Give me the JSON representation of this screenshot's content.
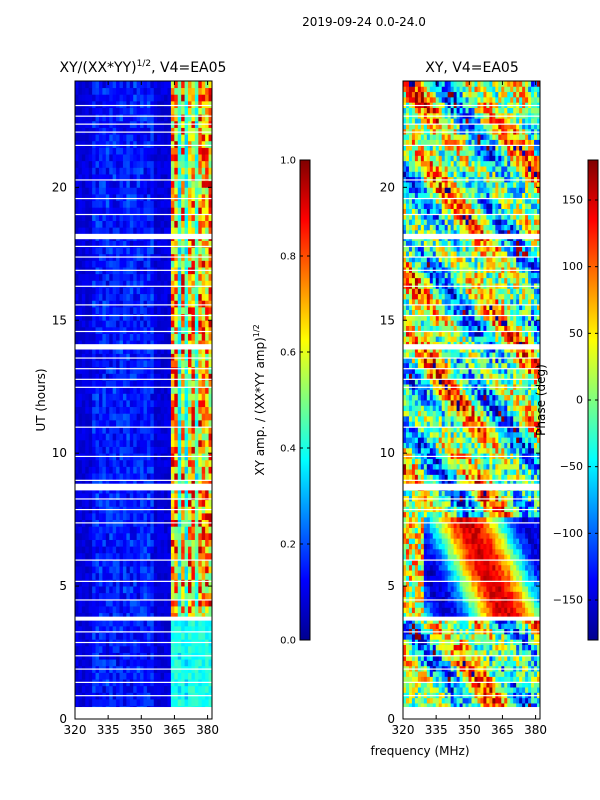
{
  "figure": {
    "suptitle": "2019-09-24 0.0-24.0",
    "xlabel": "frequency (MHz)"
  },
  "chart_data": [
    {
      "type": "heatmap",
      "title": "XY/(XX*YY)^{1/2}, V4=EA05",
      "title_parts": {
        "main": "XY/(XX*YY)",
        "sup": "1/2",
        "tail": ", V4=EA05"
      },
      "xlabel": "frequency (MHz)",
      "ylabel": "UT (hours)",
      "xlim": [
        320,
        382
      ],
      "ylim": [
        0,
        24
      ],
      "xticks": [
        320,
        335,
        350,
        365,
        380
      ],
      "yticks": [
        0,
        5,
        10,
        15,
        20
      ],
      "colormap": "jet",
      "colorbar": {
        "label": "XY amp. / (XX*YY amp)^{1/2}",
        "label_parts": {
          "main": "XY amp. / (XX*YY amp)",
          "sup": "1/2"
        },
        "range": [
          0.0,
          1.0
        ],
        "ticks": [
          "0.0",
          "0.2",
          "0.4",
          "0.6",
          "0.8",
          "1.0"
        ]
      },
      "bright_channels_MHz": [
        365,
        369,
        373,
        377,
        380
      ],
      "missing_time_ranges_hours": [
        [
          0.0,
          0.45
        ],
        [
          3.7,
          3.85
        ],
        [
          8.6,
          8.85
        ],
        [
          13.9,
          14.1
        ],
        [
          18.05,
          18.25
        ]
      ]
    },
    {
      "type": "heatmap",
      "title": "XY, V4=EA05",
      "xlim": [
        320,
        382
      ],
      "ylim": [
        0,
        24
      ],
      "xticks": [
        320,
        335,
        350,
        365,
        380
      ],
      "yticks": [
        0,
        5,
        10,
        15,
        20
      ],
      "colormap": "jet",
      "colorbar": {
        "label": "Phase (deg)",
        "range": [
          -180,
          180
        ],
        "ticks": [
          "−150",
          "−100",
          "−50",
          "0",
          "50",
          "100",
          "150"
        ]
      },
      "missing_time_ranges_hours": [
        [
          0.0,
          0.45
        ],
        [
          3.7,
          3.85
        ],
        [
          8.6,
          8.85
        ],
        [
          13.9,
          14.1
        ],
        [
          18.05,
          18.25
        ]
      ]
    }
  ],
  "colors": {
    "jet_dark_blue": "#00008f",
    "jet_blue": "#0000ff",
    "jet_cyan": "#00ffff",
    "jet_yellow": "#ffff00",
    "jet_red": "#ff0000",
    "jet_dark_red": "#800000"
  }
}
